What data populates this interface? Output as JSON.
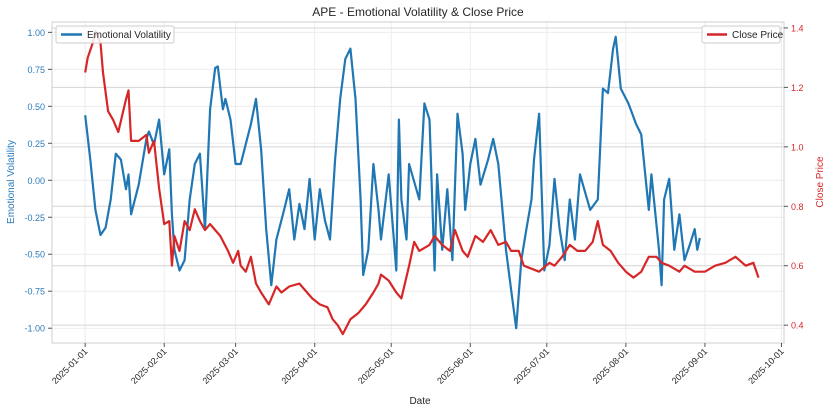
{
  "chart_data": {
    "type": "line",
    "title": "APE - Emotional Volatility & Close Price",
    "xlabel": "Date",
    "ylabel_left": "Emotional Volatility",
    "ylabel_right": "Close Price",
    "x_origin_date": "2025-01-01",
    "x_ticks": [
      "2025-01-01",
      "2025-02-01",
      "2025-03-01",
      "2025-04-01",
      "2025-05-01",
      "2025-06-01",
      "2025-07-01",
      "2025-08-01",
      "2025-09-01",
      "2025-10-01"
    ],
    "x_tick_days": [
      0,
      31,
      59,
      90,
      120,
      151,
      181,
      212,
      243,
      273
    ],
    "xlim_days": [
      -13,
      274
    ],
    "ylim_left": [
      -1.1,
      1.07
    ],
    "ylim_right": [
      0.34,
      1.42
    ],
    "y_ticks_left": [
      "-1.00",
      "-0.75",
      "-0.50",
      "-0.25",
      "0.00",
      "0.25",
      "0.50",
      "0.75",
      "1.00"
    ],
    "y_ticks_right": [
      "0.4",
      "0.6",
      "0.8",
      "1.0",
      "1.2",
      "1.4"
    ],
    "grid": true,
    "legend_left": {
      "label": "Emotional Volatility",
      "placement": "top-left"
    },
    "legend_right": {
      "label": "Close Price",
      "placement": "top-right"
    },
    "colors": {
      "volatility": "#1f77b4",
      "price": "#d62728",
      "left_axis": "#2b7bba",
      "right_axis": "#d62728"
    },
    "series": [
      {
        "name": "Emotional Volatility",
        "axis": "left",
        "x": [
          0,
          2,
          4,
          6,
          8,
          10,
          12,
          14,
          16,
          17,
          18,
          21,
          24,
          25,
          27,
          29,
          31,
          33,
          34,
          35,
          37,
          39,
          41,
          43,
          45,
          47,
          49,
          51,
          52,
          54,
          55,
          57,
          59,
          61,
          65,
          67,
          69,
          71,
          73,
          75,
          78,
          80,
          82,
          84,
          86,
          88,
          90,
          92,
          94,
          96,
          98,
          100,
          102,
          104,
          106,
          108,
          109,
          111,
          113,
          115,
          116,
          119,
          122,
          123,
          124,
          126,
          127,
          131,
          133,
          135,
          137,
          138,
          140,
          142,
          144,
          146,
          148,
          149,
          151,
          153,
          155,
          158,
          160,
          162,
          165,
          167,
          169,
          171,
          173,
          175,
          176,
          178,
          180,
          182,
          184,
          186,
          188,
          190,
          192,
          194,
          198,
          201,
          203,
          205,
          207,
          208,
          210,
          213,
          216,
          218,
          221,
          222,
          225,
          226,
          227,
          229,
          231,
          233,
          235,
          237,
          239,
          240,
          241
        ],
        "y": [
          0.44,
          0.14,
          -0.2,
          -0.37,
          -0.32,
          -0.13,
          0.18,
          0.14,
          -0.06,
          0.04,
          -0.23,
          -0.03,
          0.28,
          0.33,
          0.24,
          0.41,
          0.04,
          0.21,
          -0.23,
          -0.47,
          -0.61,
          -0.54,
          -0.13,
          0.11,
          0.18,
          -0.33,
          0.48,
          0.76,
          0.77,
          0.48,
          0.55,
          0.41,
          0.11,
          0.11,
          0.38,
          0.55,
          0.21,
          -0.33,
          -0.71,
          -0.4,
          -0.2,
          -0.06,
          -0.4,
          -0.16,
          -0.33,
          0.01,
          -0.4,
          -0.06,
          -0.27,
          -0.4,
          0.14,
          0.55,
          0.82,
          0.89,
          0.55,
          -0.13,
          -0.64,
          -0.47,
          0.11,
          -0.2,
          -0.4,
          0.04,
          -0.61,
          0.41,
          -0.13,
          -0.4,
          0.11,
          -0.13,
          0.52,
          0.41,
          -0.61,
          0.04,
          -0.47,
          -0.06,
          -0.54,
          0.45,
          0.18,
          -0.2,
          0.11,
          0.28,
          -0.03,
          0.14,
          0.28,
          0.11,
          -0.47,
          -0.74,
          -1.0,
          -0.54,
          -0.33,
          -0.13,
          0.14,
          0.45,
          -0.61,
          -0.44,
          0.01,
          -0.33,
          -0.54,
          -0.13,
          -0.4,
          0.04,
          -0.2,
          -0.13,
          0.62,
          0.59,
          0.89,
          0.97,
          0.62,
          0.52,
          0.38,
          0.31,
          -0.2,
          0.04,
          -0.47,
          -0.71,
          -0.13,
          0.01,
          -0.47,
          -0.23,
          -0.54,
          -0.44,
          -0.33,
          -0.47,
          -0.39
        ]
      },
      {
        "name": "Close Price",
        "axis": "right",
        "x": [
          0,
          1,
          3,
          4,
          6,
          7,
          9,
          11,
          13,
          16,
          17,
          18,
          21,
          24,
          25,
          27,
          29,
          31,
          33,
          34,
          35,
          37,
          39,
          41,
          43,
          45,
          47,
          49,
          53,
          56,
          58,
          60,
          61,
          63,
          65,
          67,
          69,
          72,
          75,
          77,
          80,
          84,
          86,
          89,
          92,
          95,
          97,
          99,
          101,
          104,
          107,
          110,
          113,
          115,
          116,
          119,
          122,
          124,
          127,
          129,
          131,
          135,
          137,
          140,
          143,
          145,
          148,
          150,
          153,
          156,
          159,
          162,
          165,
          167,
          170,
          172,
          175,
          178,
          182,
          184,
          187,
          190,
          193,
          196,
          199,
          201,
          203,
          206,
          209,
          212,
          215,
          218,
          221,
          224,
          226,
          229,
          233,
          235,
          239,
          243,
          247,
          251,
          255,
          259,
          262,
          264
        ],
        "y": [
          1.25,
          1.3,
          1.35,
          1.39,
          1.35,
          1.25,
          1.12,
          1.09,
          1.05,
          1.16,
          1.19,
          1.02,
          1.02,
          1.04,
          0.98,
          1.02,
          0.86,
          0.74,
          0.75,
          0.6,
          0.7,
          0.65,
          0.75,
          0.72,
          0.79,
          0.75,
          0.72,
          0.74,
          0.7,
          0.65,
          0.61,
          0.65,
          0.6,
          0.58,
          0.63,
          0.54,
          0.51,
          0.47,
          0.53,
          0.51,
          0.53,
          0.54,
          0.52,
          0.49,
          0.47,
          0.46,
          0.42,
          0.4,
          0.37,
          0.42,
          0.44,
          0.47,
          0.51,
          0.54,
          0.57,
          0.55,
          0.51,
          0.49,
          0.6,
          0.68,
          0.65,
          0.67,
          0.7,
          0.67,
          0.65,
          0.72,
          0.65,
          0.63,
          0.7,
          0.68,
          0.72,
          0.67,
          0.68,
          0.65,
          0.65,
          0.6,
          0.59,
          0.58,
          0.61,
          0.6,
          0.63,
          0.67,
          0.65,
          0.65,
          0.68,
          0.75,
          0.67,
          0.65,
          0.61,
          0.58,
          0.56,
          0.58,
          0.63,
          0.63,
          0.61,
          0.6,
          0.58,
          0.6,
          0.58,
          0.58,
          0.6,
          0.61,
          0.63,
          0.6,
          0.61,
          0.56
        ]
      }
    ]
  }
}
